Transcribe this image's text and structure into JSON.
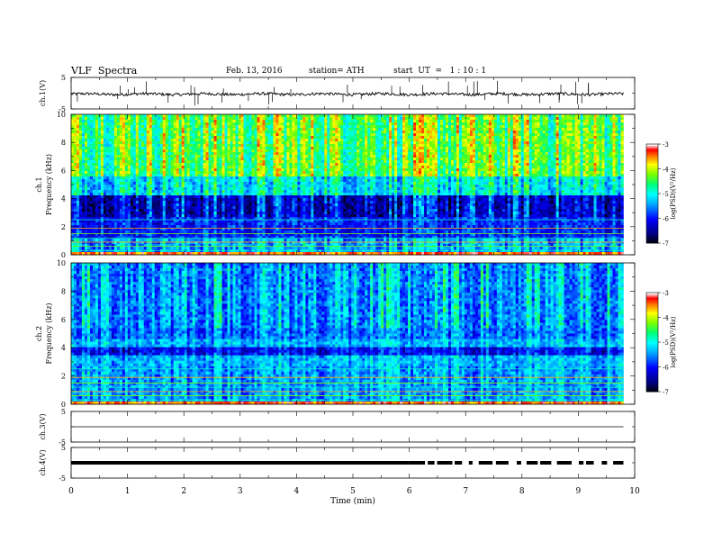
{
  "header": {
    "title": "VLF  Spectra",
    "date": "Feb. 13, 2016",
    "station": "station= ATH",
    "start": "start  UT  =   1 : 10 : 1"
  },
  "colors": {
    "spectrum_low": "#000000",
    "spectrum_mid_low": "#0000ff",
    "spectrum_mid": "#00ffff",
    "spectrum_mid_high": "#00ff00",
    "spectrum_high": "#ffff00",
    "spectrum_top": "#ff0000",
    "spectrum_max": "#ffffff",
    "trace": "#000000"
  },
  "chart_data": [
    {
      "type": "line",
      "name": "ch1",
      "ylabel": "ch.1(V)",
      "ylim": [
        -5,
        5
      ],
      "yticks": [
        5,
        -5
      ],
      "description_level": -0.3,
      "x": [
        0,
        9.8
      ],
      "values": [
        -0.3,
        -0.3
      ]
    },
    {
      "type": "heatmap",
      "name": "ch1-spectrogram",
      "ylabel_line1": "ch.1",
      "ylabel_line2": "Frequency  (kHz)",
      "ylim": [
        0,
        10
      ],
      "yticks": [
        0,
        2,
        4,
        6,
        8,
        10
      ],
      "colorbar": {
        "label": "log(PSD)(V²/Hz)",
        "ticks": [
          -3,
          -4,
          -5,
          -6,
          -7
        ],
        "range": [
          -7,
          -3
        ]
      }
    },
    {
      "type": "heatmap",
      "name": "ch2-spectrogram",
      "ylabel_line1": "ch.2",
      "ylabel_line2": "Frequency  (kHz)",
      "ylim": [
        0,
        10
      ],
      "yticks": [
        0,
        2,
        4,
        6,
        8,
        10
      ],
      "colorbar": {
        "label": "log(PSD)(V²/Hz)",
        "ticks": [
          -3,
          -4,
          -5,
          -6,
          -7
        ],
        "range": [
          -7,
          -3
        ]
      }
    },
    {
      "type": "line",
      "name": "ch3",
      "ylabel": "ch.3(V)",
      "ylim": [
        -5,
        5
      ],
      "yticks": [
        5,
        -5
      ],
      "x": [
        0,
        9.8
      ],
      "values": [
        0,
        0
      ]
    },
    {
      "type": "line",
      "name": "ch4",
      "ylabel": "ch.4(V)",
      "ylim": [
        -5,
        5
      ],
      "yticks": [
        5,
        -5
      ],
      "x": [
        0,
        9.8
      ],
      "values": [
        0,
        0
      ],
      "gaps_start_min": 6.0
    }
  ],
  "xaxis": {
    "label": "Time  (min)",
    "ticks": [
      0,
      1,
      2,
      3,
      4,
      5,
      6,
      7,
      8,
      9,
      10
    ],
    "xlim": [
      0,
      10
    ],
    "data_end": 9.8
  }
}
